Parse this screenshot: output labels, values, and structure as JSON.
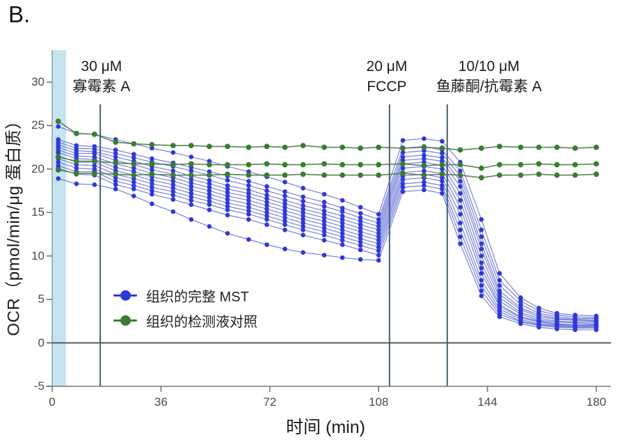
{
  "figure_label": "B.",
  "colors": {
    "mst_dot": "#3038d8",
    "mst_line": "rgba(64,80,200,0.72)",
    "control_dot": "#3a7d33",
    "control_line": "rgba(74,118,66,0.9)",
    "band": "#c6e4f0",
    "injection_line": "#44626e",
    "axis": "#757575",
    "zero_line": "#4f4f4f",
    "spine": "#8fa6ad",
    "tick_text": "#4a4a4a",
    "annotation_text": "#1b1b1b"
  },
  "legend": {
    "items": [
      {
        "group": "mst",
        "label": "组织的完整 MST",
        "color": "#3038d8"
      },
      {
        "group": "control",
        "label": "组织的检测液对照",
        "color": "#3a7d33"
      }
    ]
  },
  "chart_data": {
    "type": "line",
    "xlabel": "时间 (min)",
    "ylabel": "OCR（pmol/min/μg 蛋白质）",
    "xlim": [
      0,
      180
    ],
    "ylim": [
      -5,
      30
    ],
    "xticks": [
      0,
      36,
      72,
      108,
      144,
      180
    ],
    "yticks": [
      -5,
      0,
      5,
      10,
      15,
      20,
      25,
      30
    ],
    "grid": false,
    "zero_line": true,
    "legend_position": "lower-left-inside",
    "highlight_band": {
      "x0": 0,
      "x1": 4.6
    },
    "annotations": [
      {
        "lines": [
          "30 μM",
          "寡霉素 A"
        ],
        "line_x": 15.9,
        "label_x": 16.3
      },
      {
        "lines": [
          "20 μM",
          "FCCP"
        ],
        "line_x": 111.6,
        "label_x": 110.7
      },
      {
        "lines": [
          "10/10 μM",
          "鱼藤酮/抗霉素 A"
        ],
        "line_x": 130.7,
        "label_x": 144.5
      }
    ],
    "x": [
      2,
      8,
      14,
      21,
      27,
      33,
      40,
      46,
      52,
      58,
      65,
      71,
      77,
      83,
      90,
      96,
      102,
      108,
      116,
      123,
      129,
      135,
      142,
      148,
      155,
      161,
      167,
      173,
      180
    ],
    "series": [
      {
        "id": "mst-1",
        "group": "mst",
        "values": [
          24.9,
          24.1,
          24.0,
          23.4,
          22.9,
          22.4,
          21.9,
          21.4,
          20.9,
          20.3,
          19.7,
          19.1,
          18.5,
          17.8,
          17.1,
          16.4,
          15.6,
          14.8,
          23.3,
          23.5,
          23.2,
          20.8,
          14.2,
          8.0,
          5.2,
          4.0,
          3.4,
          3.2,
          3.1
        ]
      },
      {
        "id": "mst-2",
        "group": "mst",
        "values": [
          23.4,
          22.7,
          22.6,
          22.2,
          21.7,
          21.2,
          20.7,
          20.2,
          19.7,
          19.2,
          18.6,
          18.0,
          17.4,
          16.8,
          16.2,
          15.5,
          14.9,
          14.2,
          22.4,
          22.6,
          22.2,
          19.8,
          13.0,
          7.2,
          4.8,
          3.7,
          3.2,
          3.0,
          2.9
        ]
      },
      {
        "id": "mst-3",
        "group": "mst",
        "values": [
          23.1,
          22.4,
          22.3,
          21.8,
          21.3,
          20.8,
          20.3,
          19.8,
          19.3,
          18.7,
          18.1,
          17.5,
          16.9,
          16.3,
          15.7,
          15.1,
          14.4,
          13.8,
          21.9,
          22.1,
          21.8,
          19.2,
          12.2,
          6.6,
          4.4,
          3.4,
          3.0,
          2.8,
          2.8
        ]
      },
      {
        "id": "mst-4",
        "group": "mst",
        "values": [
          22.8,
          22.1,
          22.0,
          21.4,
          20.9,
          20.3,
          19.8,
          19.2,
          18.7,
          18.1,
          17.6,
          17.0,
          16.4,
          15.8,
          15.2,
          14.6,
          14.0,
          13.4,
          21.4,
          21.6,
          21.3,
          18.6,
          11.4,
          6.0,
          4.0,
          3.2,
          2.8,
          2.7,
          2.6
        ]
      },
      {
        "id": "mst-5",
        "group": "mst",
        "values": [
          22.5,
          21.8,
          21.8,
          21.0,
          20.5,
          19.9,
          19.4,
          18.8,
          18.3,
          17.7,
          17.2,
          16.6,
          16.0,
          15.4,
          14.8,
          14.2,
          13.6,
          13.0,
          21.0,
          21.2,
          20.9,
          18.0,
          10.8,
          5.6,
          3.8,
          3.0,
          2.7,
          2.6,
          2.5
        ]
      },
      {
        "id": "mst-6",
        "group": "mst",
        "values": [
          22.2,
          21.5,
          21.4,
          20.6,
          20.1,
          19.5,
          19.0,
          18.4,
          17.9,
          17.3,
          16.8,
          16.2,
          15.6,
          15.0,
          14.4,
          13.8,
          13.2,
          12.6,
          20.6,
          20.8,
          20.4,
          17.2,
          10.0,
          5.2,
          3.5,
          2.8,
          2.5,
          2.4,
          2.4
        ]
      },
      {
        "id": "mst-7",
        "group": "mst",
        "values": [
          21.9,
          21.2,
          21.1,
          20.2,
          19.7,
          19.1,
          18.6,
          18.0,
          17.5,
          16.9,
          16.4,
          15.8,
          15.2,
          14.6,
          14.0,
          13.4,
          12.8,
          12.2,
          20.1,
          20.3,
          20.0,
          16.4,
          9.2,
          4.8,
          3.3,
          2.6,
          2.4,
          2.3,
          2.2
        ]
      },
      {
        "id": "mst-8",
        "group": "mst",
        "values": [
          21.5,
          20.8,
          20.8,
          19.8,
          19.3,
          18.7,
          18.2,
          17.6,
          17.1,
          16.5,
          16.0,
          15.4,
          14.8,
          14.2,
          13.6,
          13.0,
          12.4,
          11.8,
          19.6,
          19.8,
          19.5,
          15.6,
          8.6,
          4.4,
          3.0,
          2.5,
          2.2,
          2.1,
          2.1
        ]
      },
      {
        "id": "mst-9",
        "group": "mst",
        "values": [
          21.2,
          20.5,
          20.4,
          19.4,
          18.9,
          18.3,
          17.8,
          17.2,
          16.7,
          16.1,
          15.6,
          15.0,
          14.4,
          13.8,
          13.2,
          12.6,
          12.0,
          11.4,
          19.2,
          19.4,
          19.0,
          14.8,
          8.0,
          4.2,
          2.9,
          2.4,
          2.1,
          2.0,
          2.0
        ]
      },
      {
        "id": "mst-10",
        "group": "mst",
        "values": [
          20.8,
          20.1,
          20.0,
          19.0,
          18.5,
          17.9,
          17.4,
          16.8,
          16.3,
          15.7,
          15.2,
          14.6,
          14.0,
          13.4,
          12.8,
          12.2,
          11.6,
          11.0,
          18.8,
          19.0,
          18.6,
          13.8,
          7.2,
          3.9,
          2.7,
          2.2,
          2.0,
          1.9,
          1.9
        ]
      },
      {
        "id": "mst-11",
        "group": "mst",
        "values": [
          20.4,
          19.7,
          19.7,
          18.6,
          18.1,
          17.5,
          17.0,
          16.4,
          15.9,
          15.3,
          14.8,
          14.2,
          13.6,
          13.0,
          12.4,
          11.8,
          11.2,
          10.6,
          18.3,
          18.5,
          18.1,
          13.0,
          6.6,
          3.6,
          2.5,
          2.1,
          1.9,
          1.8,
          1.8
        ]
      },
      {
        "id": "mst-12",
        "group": "mst",
        "values": [
          20.1,
          19.4,
          19.3,
          18.2,
          17.7,
          17.1,
          16.5,
          15.9,
          15.3,
          14.7,
          14.2,
          13.6,
          13.0,
          12.4,
          11.8,
          11.3,
          10.7,
          10.1,
          17.9,
          18.1,
          17.7,
          12.2,
          6.0,
          3.3,
          2.4,
          2.0,
          1.8,
          1.7,
          1.7
        ]
      },
      {
        "id": "mst-13",
        "group": "mst",
        "values": [
          18.9,
          18.3,
          18.2,
          17.7,
          16.9,
          16.0,
          15.1,
          14.2,
          13.4,
          12.6,
          11.9,
          11.3,
          10.8,
          10.4,
          10.1,
          9.8,
          9.6,
          9.5,
          17.4,
          17.6,
          17.2,
          11.4,
          5.4,
          3.0,
          2.2,
          1.8,
          1.6,
          1.5,
          1.5
        ]
      },
      {
        "id": "control-1",
        "group": "control",
        "values": [
          25.5,
          24.1,
          24.0,
          23.1,
          22.9,
          22.8,
          22.7,
          22.7,
          22.6,
          22.6,
          22.5,
          22.6,
          22.5,
          22.7,
          22.5,
          22.5,
          22.4,
          22.5,
          22.4,
          22.5,
          22.4,
          22.2,
          22.4,
          22.6,
          22.5,
          22.5,
          22.5,
          22.4,
          22.5
        ]
      },
      {
        "id": "control-2",
        "group": "control",
        "values": [
          21.4,
          20.9,
          20.9,
          20.7,
          20.6,
          20.6,
          20.5,
          20.6,
          20.5,
          20.5,
          20.5,
          20.6,
          20.5,
          20.5,
          20.6,
          20.5,
          20.5,
          20.5,
          20.6,
          20.4,
          20.5,
          20.5,
          20.1,
          20.5,
          20.5,
          20.6,
          20.5,
          20.5,
          20.6
        ]
      },
      {
        "id": "control-3",
        "group": "control",
        "values": [
          19.9,
          19.5,
          19.5,
          19.4,
          19.3,
          19.4,
          19.3,
          19.3,
          19.3,
          19.4,
          19.3,
          19.3,
          19.3,
          19.4,
          19.3,
          19.3,
          19.3,
          19.3,
          19.5,
          19.3,
          19.4,
          19.3,
          19.0,
          19.3,
          19.3,
          19.4,
          19.3,
          19.3,
          19.4
        ]
      }
    ]
  }
}
